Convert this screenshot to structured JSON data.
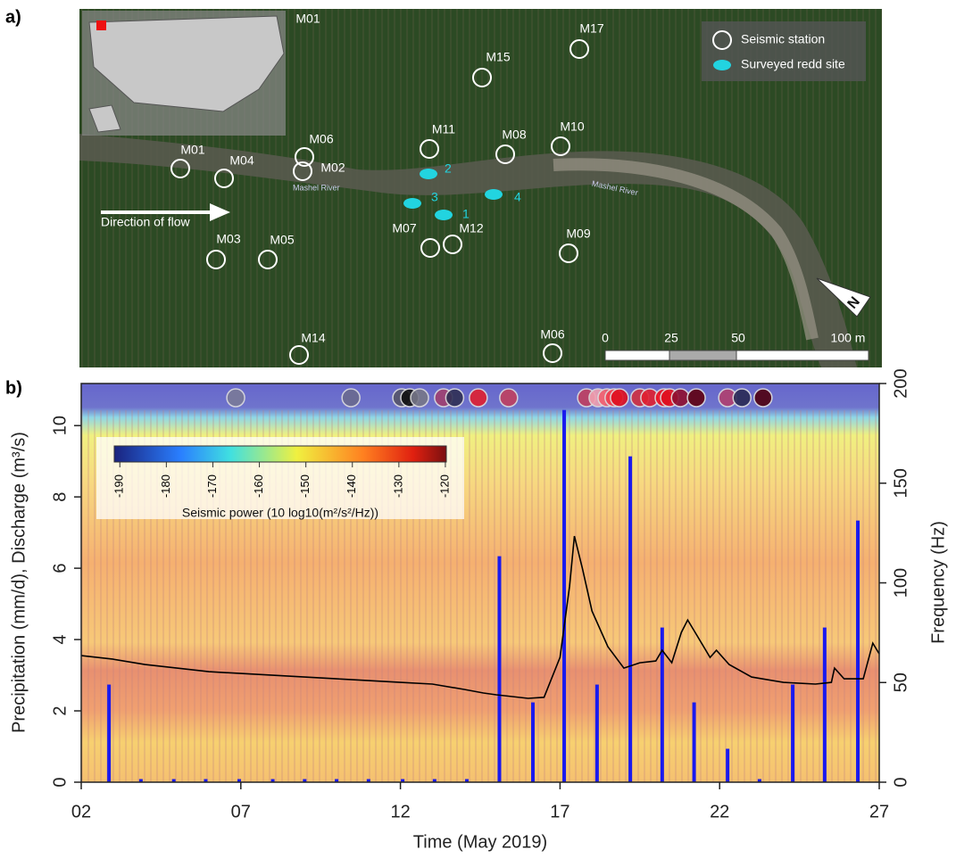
{
  "panels": [
    "a)",
    "b)"
  ],
  "map": {
    "stations": [
      "M01",
      "M01",
      "M04",
      "M06",
      "M02",
      "M03",
      "M05",
      "M07",
      "M12",
      "M11",
      "M08",
      "M10",
      "M15",
      "M17",
      "M09",
      "M14",
      "M06"
    ],
    "redds": [
      "1",
      "2",
      "3",
      "4"
    ],
    "river": [
      "Mashel River",
      "Mashel River"
    ],
    "flow": "Direction of flow",
    "legend": [
      "Seismic station",
      "Surveyed redd site"
    ],
    "scale": [
      "0",
      "25",
      "50",
      "100 m"
    ],
    "north": "N"
  },
  "chart_data": {
    "type": "combo",
    "xlabel": "Time (May 2019)",
    "ylabel": "Precipitation (mm/d), Discharge (m³/s)",
    "y2label": "Frequency (Hz)",
    "xlim": [
      2,
      27
    ],
    "xticks": [
      {
        "value": 2,
        "label": "02"
      },
      {
        "value": 7,
        "label": "07"
      },
      {
        "value": 12,
        "label": "12"
      },
      {
        "value": 17,
        "label": "17"
      },
      {
        "value": 22,
        "label": "22"
      },
      {
        "value": 27,
        "label": "27"
      }
    ],
    "ylim": [
      0,
      11.18
    ],
    "yticks": [
      0,
      2,
      4,
      6,
      8,
      10
    ],
    "y2lim": [
      0,
      200
    ],
    "y2ticks": [
      0,
      50,
      100,
      150,
      200
    ],
    "series": [
      {
        "type": "bar",
        "color": "#1a1aee",
        "x": [
          2.87,
          3.87,
          4.9,
          5.9,
          6.95,
          8.0,
          9.0,
          10.0,
          11.0,
          12.07,
          13.07,
          14.08,
          15.1,
          16.15,
          17.13,
          18.16,
          19.2,
          20.2,
          21.2,
          22.25,
          23.25,
          24.29,
          25.29,
          26.33
        ],
        "values": [
          2.7,
          0.05,
          0.05,
          0.05,
          0.05,
          0.05,
          0.05,
          0.05,
          0.05,
          0.05,
          0.05,
          0.05,
          6.3,
          2.2,
          10.4,
          2.7,
          9.1,
          4.3,
          2.2,
          0.9,
          0.05,
          2.7,
          4.3,
          7.3
        ]
      },
      {
        "type": "line",
        "color": "#000000",
        "x": [
          2.0,
          3,
          4,
          5,
          6,
          7,
          8,
          9,
          10,
          11,
          12,
          13,
          14,
          14.6,
          15,
          15.5,
          16,
          16.5,
          17,
          17.3,
          17.45,
          17.7,
          18,
          18.5,
          19,
          19.5,
          20,
          20.2,
          20.5,
          20.8,
          21.0,
          21.3,
          21.7,
          21.9,
          22.3,
          23,
          24,
          25,
          25.5,
          25.6,
          25.9,
          26.5,
          26.8,
          27
        ],
        "values": [
          3.55,
          3.45,
          3.3,
          3.2,
          3.1,
          3.05,
          3.0,
          2.95,
          2.9,
          2.85,
          2.8,
          2.75,
          2.6,
          2.5,
          2.45,
          2.4,
          2.35,
          2.38,
          3.5,
          5.5,
          6.9,
          6.0,
          4.8,
          3.8,
          3.2,
          3.35,
          3.4,
          3.7,
          3.35,
          4.2,
          4.55,
          4.1,
          3.5,
          3.7,
          3.3,
          2.95,
          2.8,
          2.75,
          2.8,
          3.2,
          2.9,
          2.9,
          3.9,
          3.6
        ]
      }
    ],
    "markers": {
      "x": [
        6.84,
        10.45,
        12.04,
        12.29,
        12.6,
        13.35,
        13.7,
        14.44,
        15.39,
        17.83,
        18.19,
        18.47,
        18.69,
        18.86,
        19.5,
        19.81,
        20.26,
        20.43,
        20.77,
        21.27,
        22.25,
        22.7,
        23.36
      ],
      "colors": [
        "#7a7a98",
        "#6a6a90",
        "#55556a",
        "#111111",
        "#777788",
        "#a04070",
        "#303055",
        "#e02030",
        "#c04060",
        "#c04060",
        "#f0a0b0",
        "#f06070",
        "#f04050",
        "#e01020",
        "#d03040",
        "#e02030",
        "#f01020",
        "#e01020",
        "#901030",
        "#600010",
        "#b04070",
        "#2a2a55",
        "#500010"
      ]
    },
    "colorbar": {
      "label": "Seismic power (10 log10(m²/s²/Hz))",
      "lim": [
        -191.2,
        -119.8
      ],
      "ticks": [
        -190,
        -180,
        -170,
        -160,
        -150,
        -140,
        -130,
        -120
      ]
    }
  }
}
